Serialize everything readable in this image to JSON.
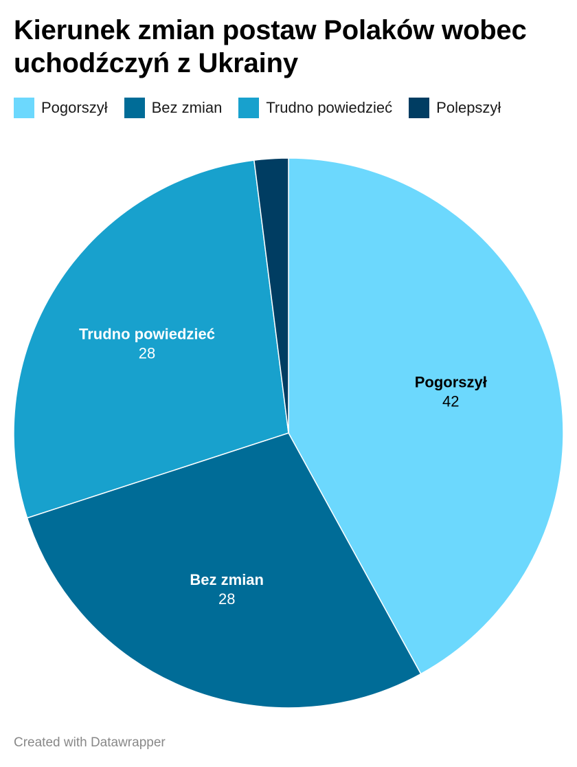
{
  "title": "Kierunek zmian postaw Polaków wobec uchodźczyń z Ukrainy",
  "footer": "Created with Datawrapper",
  "chart_data": {
    "type": "pie",
    "title": "Kierunek zmian postaw Polaków wobec uchodźczyń z Ukrainy",
    "legend": "top-left",
    "categories": [
      "Pogorszył",
      "Bez zmian",
      "Trudno powiedzieć",
      "Polepszył"
    ],
    "values": [
      42,
      28,
      28,
      2
    ],
    "colors": [
      "#6cd8fd",
      "#006c97",
      "#18a1cd",
      "#003d62"
    ],
    "label_colors": [
      "#000000",
      "#ffffff",
      "#ffffff",
      "#ffffff"
    ],
    "data_labels": [
      {
        "category": "Pogorszył",
        "value": "42"
      },
      {
        "category": "Bez zmian",
        "value": "28"
      },
      {
        "category": "Trudno powiedzieć",
        "value": "28"
      }
    ]
  }
}
